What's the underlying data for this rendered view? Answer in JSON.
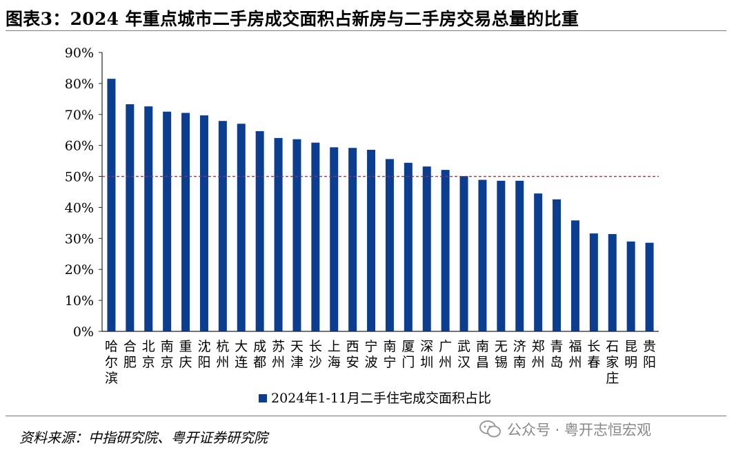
{
  "title": "图表3：2024 年重点城市二手房成交面积占新房与二手房交易总量的比重",
  "source": "资料来源：中指研究院、粤开证券研究院",
  "watermark": {
    "text": "公众号 · 粤开志恒宏观",
    "icon": "wechat-icon"
  },
  "colors": {
    "bar": "#0b3d91",
    "reference_line": "#d0201f",
    "axis": "#222222"
  },
  "chart_data": {
    "type": "bar",
    "categories": [
      "哈尔滨",
      "合肥",
      "北京",
      "南京",
      "重庆",
      "沈阳",
      "杭州",
      "大连",
      "成都",
      "苏州",
      "天津",
      "长沙",
      "上海",
      "西安",
      "宁波",
      "南宁",
      "厦门",
      "深圳",
      "广州",
      "武汉",
      "南昌",
      "无锡",
      "济南",
      "郑州",
      "青岛",
      "福州",
      "长春",
      "石家庄",
      "昆明",
      "贵阳"
    ],
    "series": [
      {
        "name": "2024年1-11月二手住宅成交面积占比",
        "values": [
          81.5,
          73.3,
          72.6,
          70.9,
          70.5,
          69.7,
          67.9,
          67.0,
          64.6,
          62.4,
          62.0,
          60.9,
          59.4,
          59.2,
          58.6,
          55.6,
          54.4,
          53.2,
          52.1,
          50.1,
          48.9,
          48.6,
          48.6,
          44.5,
          42.6,
          35.8,
          31.6,
          31.4,
          29.0,
          28.6
        ]
      }
    ],
    "reference_line": {
      "value": 50,
      "style": "dashed"
    },
    "ylim": [
      0,
      90
    ],
    "yticks": [
      "0%",
      "10%",
      "20%",
      "30%",
      "40%",
      "50%",
      "60%",
      "70%",
      "80%",
      "90%"
    ],
    "ytick_values": [
      0,
      10,
      20,
      30,
      40,
      50,
      60,
      70,
      80,
      90
    ],
    "xlabel": "",
    "ylabel": "",
    "legend_position": "bottom",
    "grid": false
  }
}
